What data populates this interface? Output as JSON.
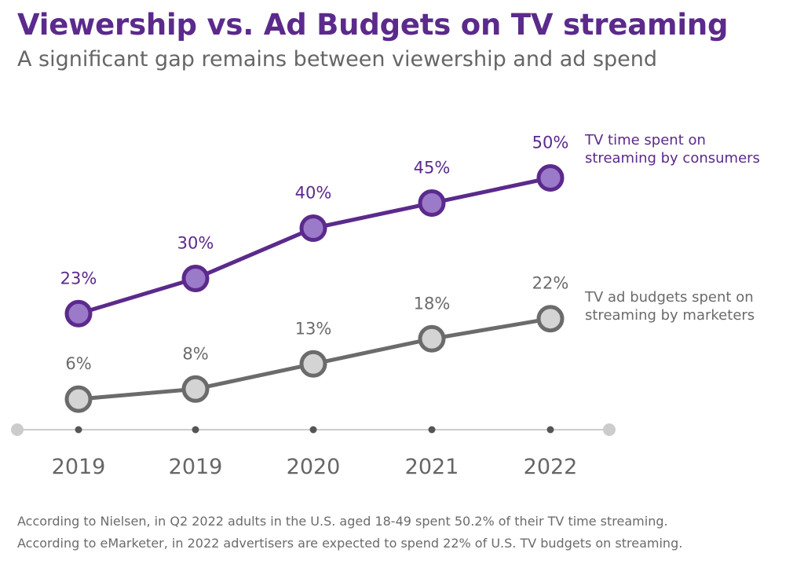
{
  "title": "Viewership vs. Ad Budgets on TV streaming",
  "subtitle": "A significant gap remains between viewership and ad spend",
  "footnotes": [
    "According to Nielsen, in Q2 2022 adults in the U.S. aged 18-49 spent 50.2% of their TV time streaming.",
    "According to eMarketer, in 2022 advertisers are expected to spend 22% of U.S. TV budgets on streaming."
  ],
  "colors": {
    "purple_line": "#5b2a8c",
    "purple_fill": "#9b7ac9",
    "gray_line": "#6b6b6b",
    "gray_fill": "#d4d4d4",
    "axis": "#cccccc",
    "tick_dot": "#555555"
  },
  "chart_data": {
    "type": "line",
    "categories": [
      "2019",
      "2019",
      "2020",
      "2021",
      "2022"
    ],
    "series": [
      {
        "name": "TV time spent on streaming by consumers",
        "label_lines": [
          "TV time spent on",
          "streaming by consumers"
        ],
        "values": [
          23,
          30,
          40,
          45,
          50
        ],
        "data_labels": [
          "23%",
          "30%",
          "40%",
          "45%",
          "50%"
        ]
      },
      {
        "name": "TV ad budgets spent on streaming by marketers",
        "label_lines": [
          "TV ad budgets spent on",
          "streaming by marketers"
        ],
        "values": [
          6,
          8,
          13,
          18,
          22
        ],
        "data_labels": [
          "6%",
          "8%",
          "13%",
          "18%",
          "22%"
        ]
      }
    ],
    "legend_placement": "right, inline at series ends",
    "grid": false
  }
}
